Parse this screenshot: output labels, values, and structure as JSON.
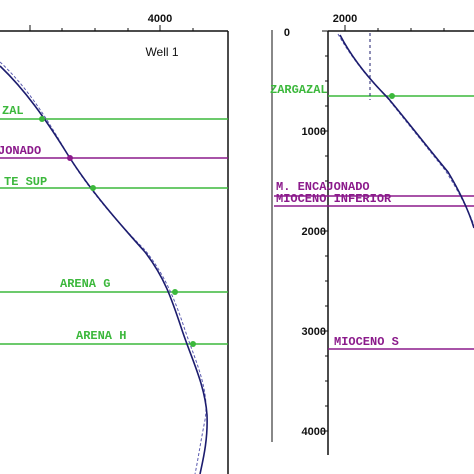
{
  "left_panel": {
    "top_ticks": [
      "4000"
    ],
    "title": "Well 1",
    "horizons": [
      "ZAL",
      "JONADO",
      "TE SUP",
      "ARENA G",
      "ARENA H"
    ]
  },
  "right_panel": {
    "top_ticks": [
      "2000"
    ],
    "depth_ticks": [
      "0",
      "1000",
      "2000",
      "3000",
      "4000"
    ],
    "horizons": [
      "ZARGAZAL",
      "M. ENCAJONADO",
      "MIOCENO INFERIOR",
      "MIOCENO S"
    ]
  }
}
